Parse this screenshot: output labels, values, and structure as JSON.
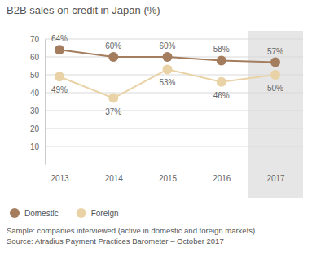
{
  "chart_data": {
    "type": "line",
    "title": "B2B sales on credit in Japan (%)",
    "categories": [
      "2013",
      "2014",
      "2015",
      "2016",
      "2017"
    ],
    "series": [
      {
        "name": "Domestic",
        "color": "#a47d5e",
        "values": [
          64,
          60,
          60,
          58,
          57
        ],
        "value_labels": [
          "64%",
          "60%",
          "60%",
          "58%",
          "57%"
        ]
      },
      {
        "name": "Foreign",
        "color": "#e9d3a6",
        "values": [
          49,
          37,
          53,
          46,
          50
        ],
        "value_labels": [
          "49%",
          "37%",
          "53%",
          "46%",
          "50%"
        ]
      }
    ],
    "ylim": [
      0,
      70
    ],
    "yticks": [
      10,
      20,
      30,
      40,
      50,
      60,
      70
    ],
    "grid": true,
    "data_labels": true,
    "legend": "bottom-left",
    "marker": "circle",
    "annotations": [
      "Sample: companies interviewed (active in domestic and foreign markets)",
      "Source: Atradius Payment Practices Barometer – October 2017"
    ]
  }
}
